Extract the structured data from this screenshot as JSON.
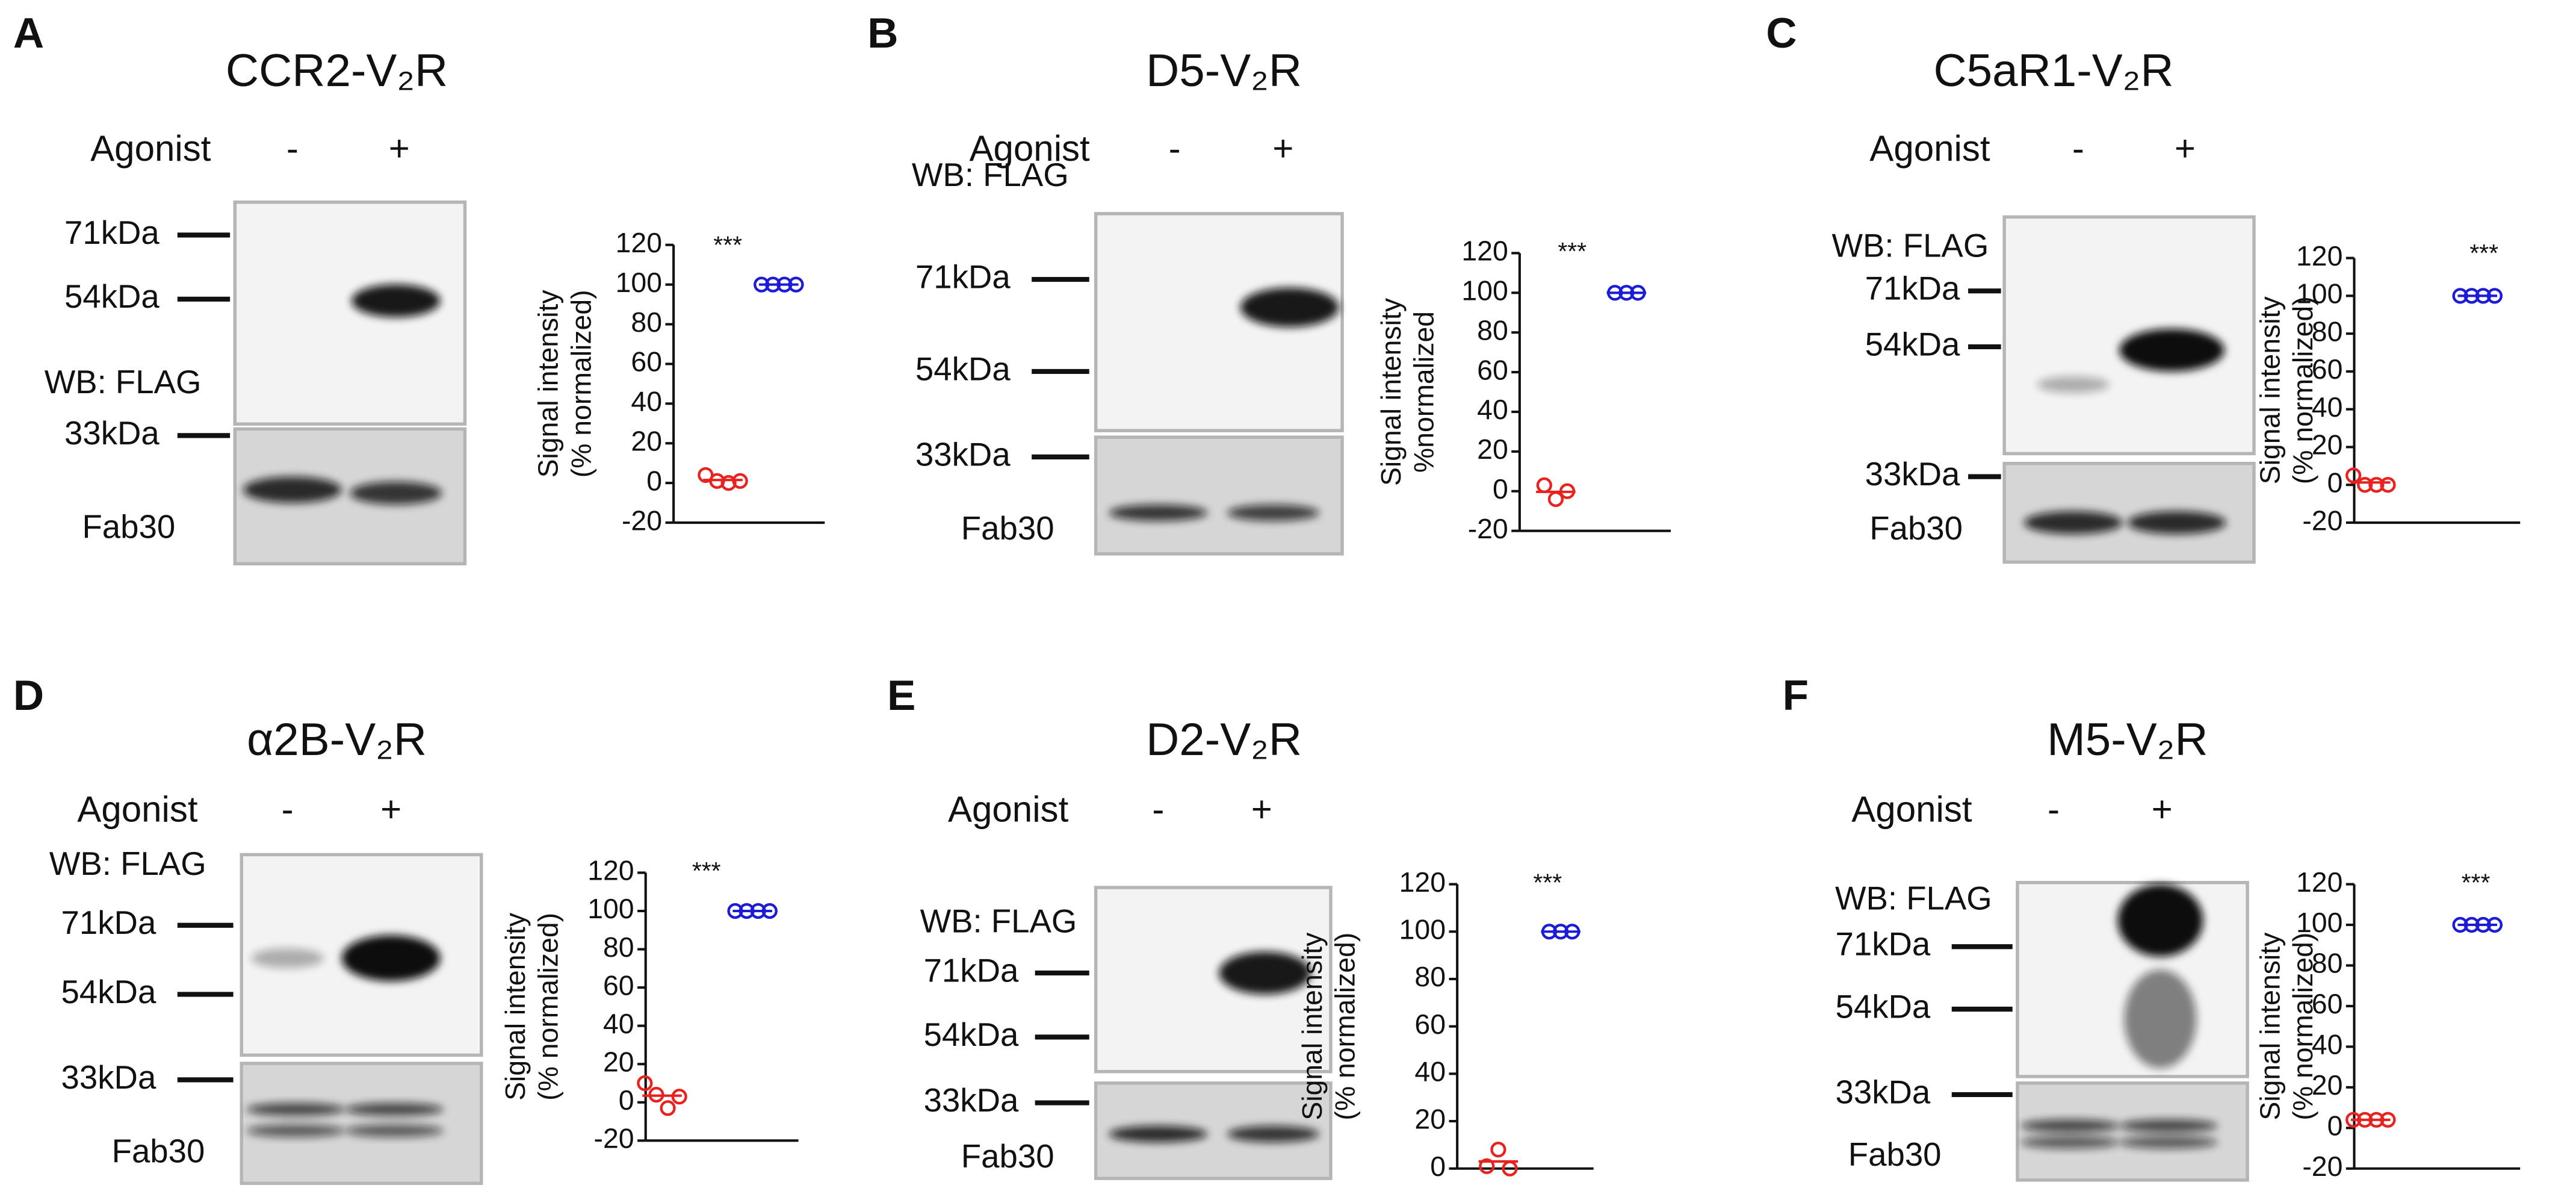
{
  "panels": [
    {
      "letter": "A",
      "title": "CCR2-V₂R",
      "agonist": "Agonist",
      "minus": "-",
      "plus": "+",
      "wb": "WB: FLAG",
      "markers": [
        "71kDa",
        "54kDa",
        "33kDa"
      ],
      "loading": "Fab30"
    },
    {
      "letter": "B",
      "title": "D5-V₂R",
      "agonist": "Agonist",
      "minus": "-",
      "plus": "+",
      "wb": "WB: FLAG",
      "markers": [
        "71kDa",
        "54kDa",
        "33kDa"
      ],
      "loading": "Fab30"
    },
    {
      "letter": "C",
      "title": "C5aR1-V₂R",
      "agonist": "Agonist",
      "minus": "-",
      "plus": "+",
      "wb": "WB: FLAG",
      "markers": [
        "71kDa",
        "54kDa",
        "33kDa"
      ],
      "loading": "Fab30"
    },
    {
      "letter": "D",
      "title": "α2B-V₂R",
      "agonist": "Agonist",
      "minus": "-",
      "plus": "+",
      "wb": "WB: FLAG",
      "markers": [
        "71kDa",
        "54kDa",
        "33kDa"
      ],
      "loading": "Fab30"
    },
    {
      "letter": "E",
      "title": "D2-V₂R",
      "agonist": "Agonist",
      "minus": "-",
      "plus": "+",
      "wb": "WB: FLAG",
      "markers": [
        "71kDa",
        "54kDa",
        "33kDa"
      ],
      "loading": "Fab30"
    },
    {
      "letter": "F",
      "title": "M5-V₂R",
      "agonist": "Agonist",
      "minus": "-",
      "plus": "+",
      "wb": "WB: FLAG",
      "markers": [
        "71kDa",
        "54kDa",
        "33kDa"
      ],
      "loading": "Fab30"
    }
  ],
  "chart_data": [
    {
      "type": "scatter",
      "y_label": [
        "Signal intensity",
        "(% normalized)"
      ],
      "annotation": "***",
      "ylim": [
        -20,
        120
      ],
      "yticks": [
        -20,
        0,
        20,
        40,
        60,
        80,
        100,
        120
      ],
      "series": [
        {
          "color": "#e8231f",
          "values": [
            4,
            1,
            0,
            1
          ]
        },
        {
          "color": "#1c1cd6",
          "values": [
            100,
            100,
            100,
            100
          ]
        }
      ]
    },
    {
      "type": "scatter",
      "y_label": [
        "Signal intensity",
        "%normalized"
      ],
      "annotation": "***",
      "ylim": [
        -20,
        120
      ],
      "yticks": [
        -20,
        0,
        20,
        40,
        60,
        80,
        100,
        120
      ],
      "series": [
        {
          "color": "#e8231f",
          "values": [
            3,
            -4,
            0
          ]
        },
        {
          "color": "#1c1cd6",
          "values": [
            100,
            100,
            100
          ]
        }
      ]
    },
    {
      "type": "scatter",
      "y_label": [
        "Signal intensity",
        "(% normalized)"
      ],
      "annotation": "***",
      "ylim": [
        -20,
        120
      ],
      "yticks": [
        -20,
        0,
        20,
        40,
        60,
        80,
        100,
        120
      ],
      "series": [
        {
          "color": "#e8231f",
          "values": [
            5,
            0,
            0,
            0
          ]
        },
        {
          "color": "#1c1cd6",
          "values": [
            100,
            100,
            100,
            100
          ]
        }
      ]
    },
    {
      "type": "scatter",
      "y_label": [
        "Signal intensity",
        "(% normalized)"
      ],
      "annotation": "***",
      "ylim": [
        -20,
        120
      ],
      "yticks": [
        -20,
        0,
        20,
        40,
        60,
        80,
        100,
        120
      ],
      "series": [
        {
          "color": "#e8231f",
          "values": [
            10,
            4,
            -3,
            3
          ]
        },
        {
          "color": "#1c1cd6",
          "values": [
            100,
            100,
            100,
            100
          ]
        }
      ]
    },
    {
      "type": "scatter",
      "y_label": [
        "Signal intensity",
        "(% normalized)"
      ],
      "annotation": "***",
      "ylim": [
        0,
        120
      ],
      "yticks": [
        0,
        20,
        40,
        60,
        80,
        100,
        120
      ],
      "series": [
        {
          "color": "#e8231f",
          "values": [
            1,
            8,
            0
          ]
        },
        {
          "color": "#1c1cd6",
          "values": [
            100,
            100,
            100
          ]
        }
      ]
    },
    {
      "type": "scatter",
      "y_label": [
        "Signal intensity",
        "(% normalized)"
      ],
      "annotation": "***",
      "ylim": [
        -20,
        120
      ],
      "yticks": [
        -20,
        0,
        20,
        40,
        60,
        80,
        100,
        120
      ],
      "series": [
        {
          "color": "#e8231f",
          "values": [
            4,
            4,
            4,
            4
          ]
        },
        {
          "color": "#1c1cd6",
          "values": [
            100,
            100,
            100,
            100
          ]
        }
      ]
    }
  ]
}
